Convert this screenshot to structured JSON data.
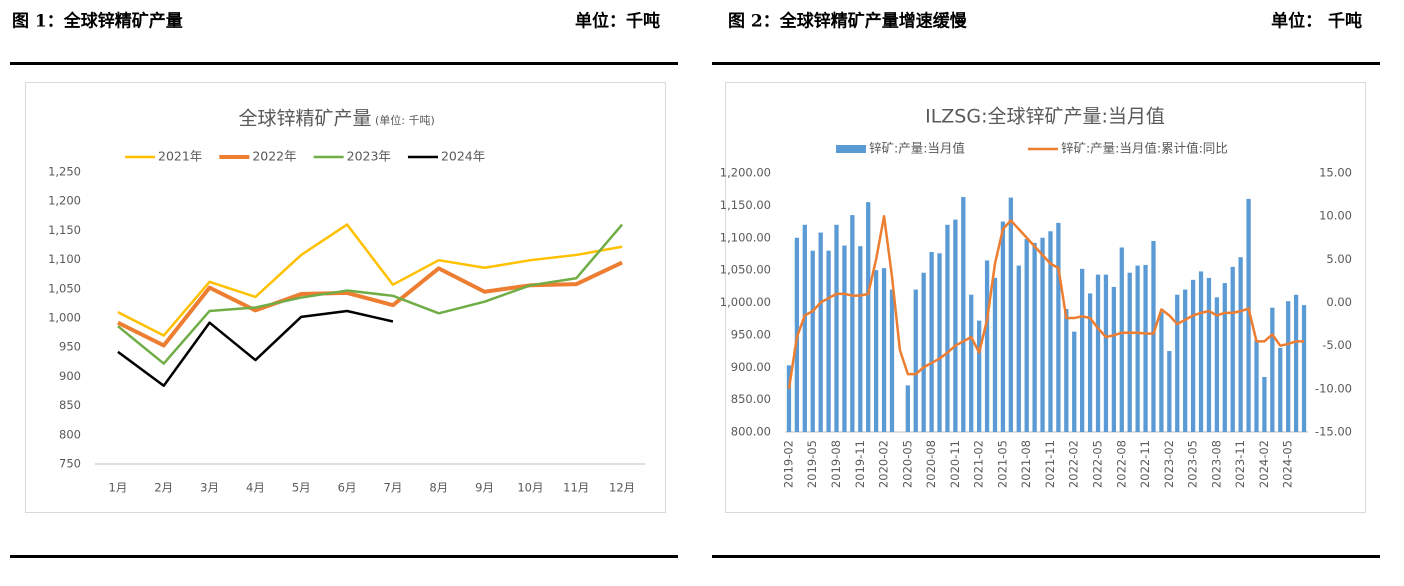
{
  "panels": [
    {
      "label": "图 1：全球锌精矿产量",
      "unit": "单位：千吨"
    },
    {
      "label": "图 2：全球锌精矿产量增速缓慢",
      "unit": "单位：  千吨"
    }
  ],
  "chart_data": [
    {
      "type": "line",
      "title": "全球锌精矿产量",
      "subtitle": "(单位: 千吨)",
      "categories": [
        "1月",
        "2月",
        "3月",
        "4月",
        "5月",
        "6月",
        "7月",
        "8月",
        "9月",
        "10月",
        "11月",
        "12月"
      ],
      "series": [
        {
          "name": "2021年",
          "color": "#FFC000",
          "linewidth": 2.5,
          "values": [
            1010,
            970,
            1062,
            1036,
            1108,
            1160,
            1057,
            1099,
            1086,
            1099,
            1108,
            1122
          ]
        },
        {
          "name": "2022年",
          "color": "#ED7D31",
          "linewidth": 4,
          "values": [
            992,
            953,
            1052,
            1013,
            1041,
            1043,
            1022,
            1085,
            1045,
            1056,
            1058,
            1095
          ]
        },
        {
          "name": "2023年",
          "color": "#70AD47",
          "linewidth": 2.5,
          "values": [
            986,
            922,
            1012,
            1018,
            1035,
            1047,
            1038,
            1008,
            1028,
            1056,
            1068,
            1160
          ]
        },
        {
          "name": "2024年",
          "color": "#000000",
          "linewidth": 2.5,
          "values": [
            942,
            884,
            992,
            928,
            1002,
            1012,
            994,
            null,
            null,
            null,
            null,
            null
          ]
        }
      ],
      "ylim": [
        750,
        1250
      ],
      "yticks": [
        750,
        800,
        850,
        900,
        950,
        {
          "value": 1000,
          "label": "1,000"
        },
        {
          "value": 1050,
          "label": "1,050"
        },
        {
          "value": 1100,
          "label": "1,100"
        },
        {
          "value": 1150,
          "label": "1,150"
        },
        {
          "value": 1200,
          "label": "1,200"
        },
        {
          "value": 1250,
          "label": "1,250"
        }
      ],
      "legend": "top",
      "grid": false
    },
    {
      "type": "combo",
      "title": "ILZSG:全球锌矿产量:当月值",
      "categories": [
        "2019-02",
        null,
        null,
        "2019-05",
        null,
        null,
        "2019-08",
        null,
        null,
        "2019-11",
        null,
        null,
        "2020-02",
        null,
        null,
        "2020-05",
        null,
        null,
        "2020-08",
        null,
        null,
        "2020-11",
        null,
        null,
        "2021-02",
        null,
        null,
        "2021-05",
        null,
        null,
        "2021-08",
        null,
        null,
        "2021-11",
        null,
        null,
        "2022-02",
        null,
        null,
        "2022-05",
        null,
        null,
        "2022-08",
        null,
        null,
        "2022-11",
        null,
        null,
        "2023-02",
        null,
        null,
        "2023-05",
        null,
        null,
        "2023-08",
        null,
        null,
        "2023-11",
        null,
        null,
        "2024-02",
        null,
        null,
        "2024-05",
        null,
        null
      ],
      "series": [
        {
          "name": "锌矿:产量:当月值",
          "type": "bar",
          "color": "#5B9BD5",
          "values": [
            903,
            1100,
            1120,
            1080,
            1108,
            1080,
            1120,
            1088,
            1135,
            1087,
            1155,
            1050,
            1053,
            1020,
            null,
            872,
            1020,
            1046,
            1078,
            1076,
            1120,
            1128,
            1163,
            1012,
            972,
            1065,
            1038,
            1125,
            1162,
            1057,
            1098,
            1092,
            1100,
            1110,
            1123,
            990,
            955,
            1052,
            1014,
            1043,
            1043,
            1024,
            1085,
            1046,
            1057,
            1058,
            1095,
            985,
            925,
            1012,
            1020,
            1035,
            1048,
            1038,
            1008,
            1030,
            1055,
            1070,
            1160,
            942,
            885,
            992,
            930,
            1002,
            1012,
            996
          ]
        },
        {
          "name": "锌矿:产量:当月值:累计值:同比",
          "type": "line",
          "axis": "y2",
          "color": "#ED7D31",
          "linewidth": 2.5,
          "values": [
            -10,
            -4,
            -1.5,
            -1,
            0,
            0.5,
            1,
            1,
            0.8,
            0.8,
            1,
            5,
            10,
            3,
            -5.5,
            -8.3,
            -8.3,
            -7.5,
            -7,
            -6.5,
            -5.8,
            -5,
            -4.5,
            -4,
            -5.8,
            -2,
            4.5,
            8.5,
            9.5,
            8.5,
            7.5,
            6.5,
            5.5,
            4.5,
            4,
            -1.8,
            -1.8,
            -1.6,
            -1.8,
            -3,
            -4,
            -3.8,
            -3.5,
            -3.5,
            -3.5,
            -3.6,
            -3.6,
            -0.8,
            -1.5,
            -2.5,
            -2,
            -1.5,
            -1.2,
            -1,
            -1.5,
            -1.2,
            -1.2,
            -1,
            -0.7,
            -4.5,
            -4.5,
            -3.7,
            -5,
            -4.8,
            -4.5,
            -4.5
          ]
        }
      ],
      "ylim": [
        800,
        1200
      ],
      "yticks": [
        {
          "value": 800,
          "label": "800.00"
        },
        {
          "value": 850,
          "label": "850.00"
        },
        {
          "value": 900,
          "label": "900.00"
        },
        {
          "value": 950,
          "label": "950.00"
        },
        {
          "value": 1000,
          "label": "1,000.00"
        },
        {
          "value": 1050,
          "label": "1,050.00"
        },
        {
          "value": 1100,
          "label": "1,100.00"
        },
        {
          "value": 1150,
          "label": "1,150.00"
        },
        {
          "value": 1200,
          "label": "1,200.00"
        }
      ],
      "y2lim": [
        -15,
        15
      ],
      "y2ticks": [
        {
          "value": -15,
          "label": "-15.00"
        },
        {
          "value": -10,
          "label": "-10.00"
        },
        {
          "value": -5,
          "label": "-5.00"
        },
        {
          "value": 0,
          "label": "0.00"
        },
        {
          "value": 5,
          "label": "5.00"
        },
        {
          "value": 10,
          "label": "10.00"
        },
        {
          "value": 15,
          "label": "15.00"
        }
      ],
      "legend": "top",
      "grid": false
    }
  ]
}
